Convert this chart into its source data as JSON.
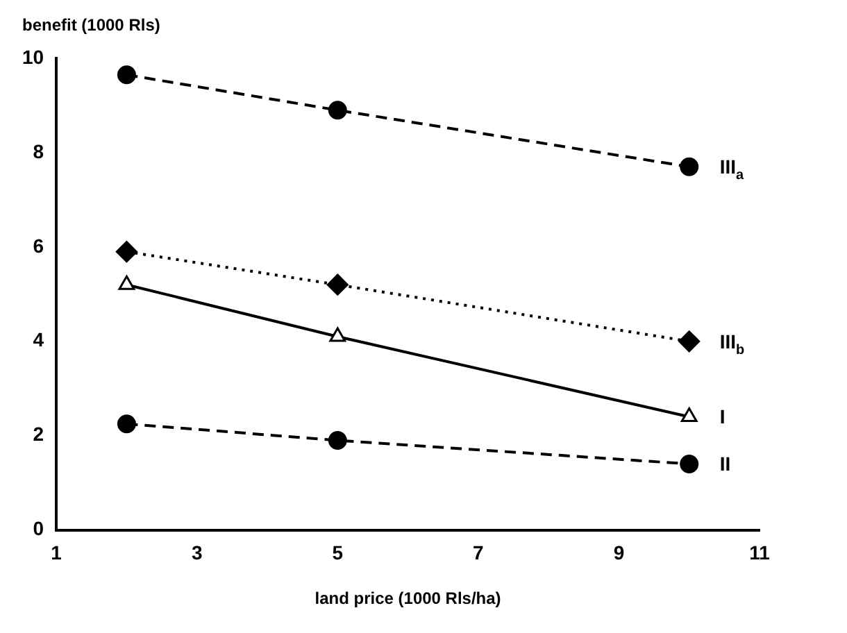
{
  "chart_data": {
    "type": "line",
    "xlabel": "land price (1000 Rls/ha)",
    "ylabel": "benefit (1000 Rls)",
    "x": [
      2,
      5,
      10
    ],
    "series": [
      {
        "name": "III$_{a}$",
        "color": "#000000",
        "values": [
          9.65,
          8.9,
          7.7
        ],
        "marker": "circle",
        "line_style": "dashed"
      },
      {
        "name": "III$_{b}$",
        "color": "#000000",
        "values": [
          5.9,
          5.2,
          4.0
        ],
        "marker": "diamond",
        "line_style": "dotted"
      },
      {
        "name": "I",
        "color": "#000000",
        "values": [
          5.2,
          4.1,
          2.4
        ],
        "marker": "triangle",
        "line_style": "solid"
      },
      {
        "name": "II",
        "color": "#000000",
        "values": [
          2.25,
          1.9,
          1.4
        ],
        "marker": "circle",
        "line_style": "dashed"
      }
    ],
    "xlim": [
      1,
      11
    ],
    "xticks": [
      1,
      3,
      5,
      7,
      9,
      11
    ],
    "ylim": [
      0,
      10
    ],
    "yticks": [
      0,
      2,
      4,
      6,
      8,
      10
    ],
    "grid": false,
    "legend": false
  }
}
